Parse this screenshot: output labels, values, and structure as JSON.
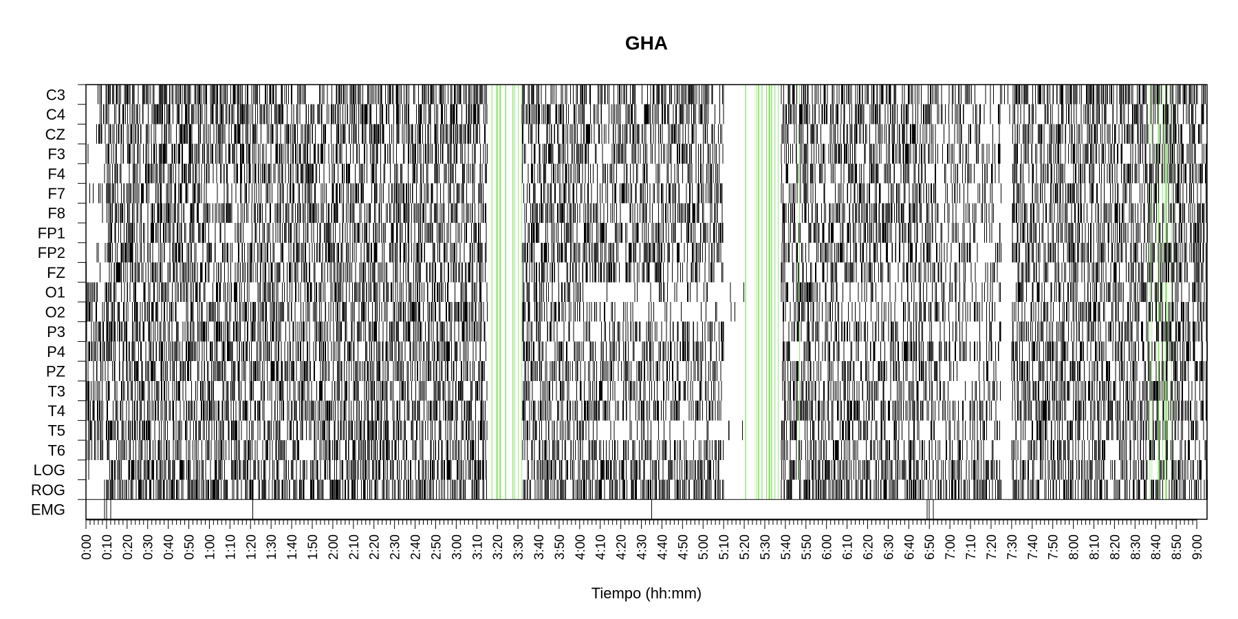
{
  "chart_data": {
    "type": "heatmap",
    "title": "GHA",
    "xlabel": "Tiempo (hh:mm)",
    "ylabel": "",
    "x_unit": "minutes",
    "xlim": [
      0,
      545
    ],
    "channels": [
      "C3",
      "C4",
      "CZ",
      "F3",
      "F4",
      "F7",
      "F8",
      "FP1",
      "FP2",
      "FZ",
      "O1",
      "O2",
      "P3",
      "P4",
      "PZ",
      "T3",
      "T4",
      "T5",
      "T6",
      "LOG",
      "ROG",
      "EMG"
    ],
    "x_ticks": [
      "0:00",
      "0:10",
      "0:20",
      "0:30",
      "0:40",
      "0:50",
      "1:00",
      "1:10",
      "1:20",
      "1:30",
      "1:40",
      "1:50",
      "2:00",
      "2:10",
      "2:20",
      "2:30",
      "2:40",
      "2:50",
      "3:00",
      "3:10",
      "3:20",
      "3:30",
      "3:40",
      "3:50",
      "4:00",
      "4:10",
      "4:20",
      "4:30",
      "4:40",
      "4:50",
      "5:00",
      "5:10",
      "5:20",
      "5:30",
      "5:40",
      "5:50",
      "6:00",
      "6:10",
      "6:20",
      "6:30",
      "6:40",
      "6:50",
      "7:00",
      "7:10",
      "7:20",
      "7:30",
      "7:40",
      "7:50",
      "8:00",
      "8:10",
      "8:20",
      "8:30",
      "8:40",
      "8:50",
      "9:00"
    ],
    "colors": {
      "event": "#000000",
      "highlight": "#7ee05a",
      "background": "#ffffff"
    },
    "highlight_intervals": [
      [
        196,
        212
      ],
      [
        320,
        338
      ],
      [
        345,
        350
      ],
      [
        517,
        527
      ]
    ],
    "channel_density": {
      "C3": [
        [
          0,
          5,
          0.05
        ],
        [
          5,
          45,
          0.55
        ],
        [
          45,
          195,
          0.6
        ],
        [
          212,
          275,
          0.45
        ],
        [
          275,
          310,
          0.55
        ],
        [
          338,
          410,
          0.5
        ],
        [
          410,
          440,
          0.35
        ],
        [
          440,
          450,
          0.1
        ],
        [
          450,
          545,
          0.55
        ]
      ],
      "C4": [
        [
          0,
          5,
          0.05
        ],
        [
          5,
          45,
          0.6
        ],
        [
          45,
          195,
          0.55
        ],
        [
          212,
          310,
          0.5
        ],
        [
          338,
          410,
          0.5
        ],
        [
          410,
          445,
          0.35
        ],
        [
          445,
          450,
          0.1
        ],
        [
          450,
          545,
          0.5
        ]
      ],
      "CZ": [
        [
          0,
          5,
          0.05
        ],
        [
          5,
          45,
          0.55
        ],
        [
          45,
          195,
          0.55
        ],
        [
          212,
          310,
          0.5
        ],
        [
          338,
          410,
          0.5
        ],
        [
          410,
          445,
          0.35
        ],
        [
          450,
          545,
          0.5
        ]
      ],
      "F3": [
        [
          0,
          10,
          0.05
        ],
        [
          10,
          50,
          0.55
        ],
        [
          50,
          195,
          0.5
        ],
        [
          212,
          310,
          0.45
        ],
        [
          338,
          410,
          0.45
        ],
        [
          410,
          445,
          0.35
        ],
        [
          450,
          545,
          0.5
        ]
      ],
      "F4": [
        [
          0,
          10,
          0.05
        ],
        [
          10,
          50,
          0.55
        ],
        [
          50,
          195,
          0.5
        ],
        [
          212,
          310,
          0.45
        ],
        [
          338,
          410,
          0.45
        ],
        [
          410,
          445,
          0.35
        ],
        [
          450,
          545,
          0.5
        ]
      ],
      "F7": [
        [
          0,
          10,
          0.05
        ],
        [
          10,
          60,
          0.55
        ],
        [
          60,
          120,
          0.3
        ],
        [
          120,
          195,
          0.45
        ],
        [
          212,
          310,
          0.45
        ],
        [
          338,
          410,
          0.45
        ],
        [
          410,
          445,
          0.3
        ],
        [
          450,
          545,
          0.45
        ]
      ],
      "F8": [
        [
          0,
          10,
          0.05
        ],
        [
          10,
          60,
          0.55
        ],
        [
          60,
          195,
          0.5
        ],
        [
          212,
          310,
          0.45
        ],
        [
          338,
          410,
          0.5
        ],
        [
          410,
          445,
          0.3
        ],
        [
          450,
          545,
          0.45
        ]
      ],
      "FP1": [
        [
          0,
          10,
          0.05
        ],
        [
          10,
          60,
          0.55
        ],
        [
          60,
          195,
          0.5
        ],
        [
          212,
          310,
          0.5
        ],
        [
          338,
          410,
          0.5
        ],
        [
          410,
          445,
          0.3
        ],
        [
          450,
          545,
          0.5
        ]
      ],
      "FP2": [
        [
          0,
          10,
          0.05
        ],
        [
          10,
          60,
          0.55
        ],
        [
          60,
          195,
          0.5
        ],
        [
          212,
          310,
          0.5
        ],
        [
          338,
          410,
          0.5
        ],
        [
          410,
          445,
          0.3
        ],
        [
          450,
          545,
          0.5
        ]
      ],
      "FZ": [
        [
          0,
          10,
          0.05
        ],
        [
          10,
          60,
          0.55
        ],
        [
          60,
          195,
          0.5
        ],
        [
          212,
          310,
          0.45
        ],
        [
          338,
          410,
          0.45
        ],
        [
          410,
          445,
          0.3
        ],
        [
          450,
          545,
          0.5
        ]
      ],
      "O1": [
        [
          0,
          10,
          0.55
        ],
        [
          10,
          195,
          0.5
        ],
        [
          212,
          240,
          0.45
        ],
        [
          240,
          320,
          0.1
        ],
        [
          338,
          355,
          0.5
        ],
        [
          355,
          400,
          0.25
        ],
        [
          400,
          445,
          0.3
        ],
        [
          450,
          545,
          0.45
        ]
      ],
      "O2": [
        [
          0,
          10,
          0.55
        ],
        [
          10,
          195,
          0.5
        ],
        [
          212,
          240,
          0.45
        ],
        [
          240,
          320,
          0.15
        ],
        [
          338,
          355,
          0.5
        ],
        [
          355,
          400,
          0.25
        ],
        [
          400,
          445,
          0.3
        ],
        [
          450,
          545,
          0.45
        ]
      ],
      "P3": [
        [
          0,
          10,
          0.45
        ],
        [
          10,
          195,
          0.55
        ],
        [
          212,
          310,
          0.45
        ],
        [
          338,
          410,
          0.45
        ],
        [
          410,
          445,
          0.3
        ],
        [
          450,
          545,
          0.5
        ]
      ],
      "P4": [
        [
          0,
          10,
          0.45
        ],
        [
          10,
          195,
          0.55
        ],
        [
          212,
          310,
          0.45
        ],
        [
          338,
          410,
          0.45
        ],
        [
          410,
          445,
          0.3
        ],
        [
          450,
          545,
          0.5
        ]
      ],
      "PZ": [
        [
          0,
          10,
          0.45
        ],
        [
          10,
          195,
          0.55
        ],
        [
          212,
          310,
          0.45
        ],
        [
          338,
          410,
          0.45
        ],
        [
          410,
          445,
          0.3
        ],
        [
          450,
          545,
          0.5
        ]
      ],
      "T3": [
        [
          0,
          10,
          0.45
        ],
        [
          10,
          195,
          0.5
        ],
        [
          212,
          310,
          0.4
        ],
        [
          338,
          410,
          0.4
        ],
        [
          410,
          445,
          0.3
        ],
        [
          450,
          545,
          0.45
        ]
      ],
      "T4": [
        [
          0,
          10,
          0.55
        ],
        [
          10,
          195,
          0.55
        ],
        [
          212,
          310,
          0.5
        ],
        [
          338,
          410,
          0.5
        ],
        [
          410,
          445,
          0.35
        ],
        [
          450,
          545,
          0.5
        ]
      ],
      "T5": [
        [
          0,
          10,
          0.5
        ],
        [
          10,
          195,
          0.5
        ],
        [
          212,
          245,
          0.45
        ],
        [
          245,
          320,
          0.1
        ],
        [
          338,
          410,
          0.45
        ],
        [
          410,
          445,
          0.3
        ],
        [
          450,
          545,
          0.45
        ]
      ],
      "T6": [
        [
          0,
          10,
          0.5
        ],
        [
          10,
          195,
          0.5
        ],
        [
          212,
          310,
          0.45
        ],
        [
          338,
          410,
          0.45
        ],
        [
          410,
          445,
          0.3
        ],
        [
          450,
          545,
          0.45
        ]
      ],
      "LOG": [
        [
          0,
          10,
          0.05
        ],
        [
          10,
          195,
          0.55
        ],
        [
          212,
          310,
          0.55
        ],
        [
          338,
          445,
          0.55
        ],
        [
          450,
          545,
          0.5
        ]
      ],
      "ROG": [
        [
          0,
          10,
          0.05
        ],
        [
          10,
          195,
          0.6
        ],
        [
          212,
          310,
          0.6
        ],
        [
          338,
          445,
          0.6
        ],
        [
          450,
          545,
          0.55
        ]
      ],
      "EMG": []
    },
    "emg_events": [
      9,
      10,
      12,
      81,
      275,
      409,
      410,
      412
    ],
    "grid": false,
    "legend": "none"
  }
}
